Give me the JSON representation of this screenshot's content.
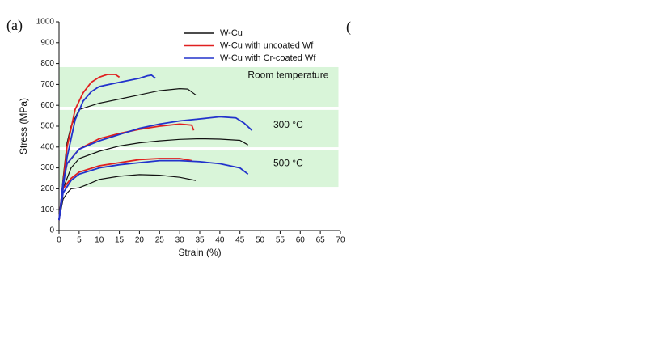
{
  "chart_data": {
    "type": "line",
    "panel_labels": [
      "(a)",
      "("
    ],
    "xlabel": "Strain (%)",
    "ylabel": "Stress (MPa)",
    "xlim": [
      0,
      70
    ],
    "ylim": [
      0,
      1000
    ],
    "xticks": [
      0,
      5,
      10,
      15,
      20,
      25,
      30,
      35,
      40,
      45,
      50,
      55,
      60,
      65,
      70
    ],
    "yticks": [
      0,
      100,
      200,
      300,
      400,
      500,
      600,
      700,
      800,
      900,
      1000
    ],
    "bands": [
      {
        "label": "Room temperature",
        "ylim": [
          593,
          783
        ],
        "xlim": [
          0,
          69.5
        ],
        "color": "#d9f5d9"
      },
      {
        "label": "300 °C",
        "ylim": [
          399,
          578
        ],
        "xlim": [
          0,
          69.5
        ],
        "color": "#d9f5d9"
      },
      {
        "label": "500 °C",
        "ylim": [
          209,
          384
        ],
        "xlim": [
          0,
          69.5
        ],
        "color": "#d9f5d9"
      }
    ],
    "legend": "top",
    "series": [
      {
        "name": "W-Cu",
        "color": "#111111",
        "curves": [
          {
            "x": [
              0,
              1,
              2,
              3,
              5,
              10,
              15,
              20,
              25,
              30,
              32,
              34
            ],
            "values": [
              50,
              250,
              420,
              500,
              580,
              610,
              630,
              650,
              670,
              680,
              678,
              650
            ]
          },
          {
            "x": [
              0,
              1,
              3,
              5,
              10,
              15,
              20,
              25,
              30,
              35,
              40,
              45,
              47
            ],
            "values": [
              50,
              200,
              300,
              345,
              380,
              405,
              420,
              430,
              437,
              440,
              438,
              432,
              410
            ]
          },
          {
            "x": [
              0,
              1,
              2,
              3,
              5,
              7,
              10,
              15,
              20,
              25,
              30,
              34
            ],
            "values": [
              50,
              150,
              180,
              200,
              205,
              220,
              245,
              260,
              268,
              265,
              255,
              240
            ]
          }
        ]
      },
      {
        "name": "W-Cu with uncoated Wf",
        "color": "#e02020",
        "curves": [
          {
            "x": [
              0,
              2,
              4,
              6,
              8,
              10,
              12,
              14,
              15
            ],
            "values": [
              50,
              400,
              580,
              660,
              710,
              735,
              748,
              748,
              735
            ]
          },
          {
            "x": [
              0,
              1,
              2,
              5,
              10,
              15,
              20,
              25,
              30,
              33,
              33.5
            ],
            "values": [
              50,
              230,
              320,
              390,
              440,
              465,
              485,
              500,
              510,
              505,
              480
            ]
          },
          {
            "x": [
              0,
              1,
              3,
              5,
              10,
              15,
              20,
              25,
              30,
              33
            ],
            "values": [
              50,
              200,
              250,
              280,
              310,
              325,
              340,
              345,
              345,
              335
            ]
          }
        ]
      },
      {
        "name": "W-Cu with Cr-coated Wf",
        "color": "#2233cc",
        "curves": [
          {
            "x": [
              0,
              2,
              4,
              6,
              8,
              10,
              15,
              20,
              22,
              23,
              24
            ],
            "values": [
              50,
              350,
              530,
              620,
              665,
              690,
              710,
              730,
              742,
              745,
              730
            ]
          },
          {
            "x": [
              0,
              1,
              2,
              5,
              10,
              15,
              20,
              25,
              30,
              35,
              40,
              44,
              46,
              48
            ],
            "values": [
              50,
              230,
              320,
              390,
              430,
              460,
              490,
              510,
              525,
              535,
              545,
              540,
              515,
              480
            ]
          },
          {
            "x": [
              0,
              1,
              3,
              5,
              10,
              15,
              20,
              25,
              30,
              35,
              40,
              45,
              47
            ],
            "values": [
              50,
              180,
              240,
              270,
              300,
              315,
              325,
              335,
              335,
              330,
              320,
              300,
              270
            ]
          }
        ]
      }
    ]
  }
}
